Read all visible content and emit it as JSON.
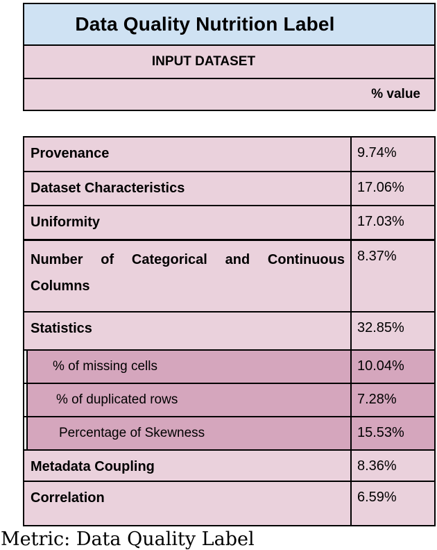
{
  "header": {
    "title": "Data Quality Nutrition Label",
    "section_label": "INPUT DATASET",
    "value_column_label": "% value"
  },
  "table": {
    "rows": [
      {
        "label": "Provenance",
        "value": "9.74%",
        "type": "main"
      },
      {
        "label": "Dataset Characteristics",
        "value": "17.06%",
        "type": "main"
      },
      {
        "label": "Uniformity",
        "value": "17.03%",
        "type": "main"
      },
      {
        "label": "Number of Categorical and Continuous Columns",
        "value": "8.37%",
        "type": "main"
      },
      {
        "label": "Statistics",
        "value": "32.85%",
        "type": "main"
      },
      {
        "label": "% of missing cells",
        "value": "10.04%",
        "type": "sub"
      },
      {
        "label": "% of duplicated rows",
        "value": "7.28%",
        "type": "sub"
      },
      {
        "label": "Percentage of Skewness",
        "value": "15.53%",
        "type": "sub"
      },
      {
        "label": "Metadata Coupling",
        "value": "8.36%",
        "type": "main"
      },
      {
        "label": "Correlation",
        "value": "6.59%",
        "type": "main"
      }
    ]
  },
  "caption": "Metric: Data Quality Label",
  "colors": {
    "title_bg": "#cfe2f3",
    "row_bg": "#ead1dc",
    "sub_row_bg": "#d5a6bd",
    "border": "#000000",
    "text": "#000000"
  }
}
